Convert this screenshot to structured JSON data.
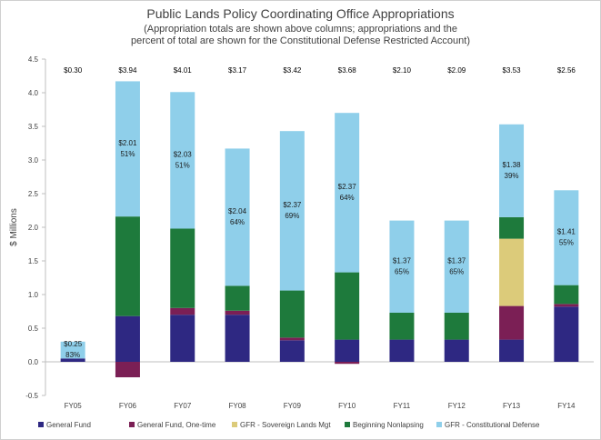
{
  "chart_data": {
    "type": "bar",
    "stacked": true,
    "title": "Public Lands Policy Coordinating Office Appropriations",
    "subtitle": [
      "(Appropriation totals are shown above columns; appropriations and the",
      "percent of total are shown for the Constitutional Defense Restricted Account)"
    ],
    "ylabel": "$ Millions",
    "xlabel": "",
    "ylim": [
      -0.5,
      4.5
    ],
    "yticks": [
      "4.5",
      "4.0",
      "3.5",
      "3.0",
      "2.5",
      "2.0",
      "1.5",
      "1.0",
      "0.5",
      "0.0",
      "-0.5"
    ],
    "ytick_values": [
      4.5,
      4.0,
      3.5,
      3.0,
      2.5,
      2.0,
      1.5,
      1.0,
      0.5,
      0.0,
      -0.5
    ],
    "grid": false,
    "legend_position": "bottom",
    "categories": [
      "FY05",
      "FY06",
      "FY07",
      "FY08",
      "FY09",
      "FY10",
      "FY11",
      "FY12",
      "FY13",
      "FY14"
    ],
    "totals": [
      "$0.30",
      "$3.94",
      "$4.01",
      "$3.17",
      "$3.42",
      "$3.68",
      "$2.10",
      "$2.09",
      "$3.53",
      "$2.56"
    ],
    "series": [
      {
        "name": "General Fund",
        "color": "#2e2882",
        "values": [
          0.05,
          0.68,
          0.7,
          0.7,
          0.32,
          0.33,
          0.33,
          0.33,
          0.33,
          0.82
        ]
      },
      {
        "name": "General Fund, One-time",
        "color": "#7b1f55",
        "values": [
          0.0,
          -0.23,
          0.1,
          0.06,
          0.04,
          -0.03,
          0.0,
          0.0,
          0.5,
          0.04
        ]
      },
      {
        "name": "GFR - Sovereign Lands Mgt",
        "color": "#dccb7a",
        "values": [
          0.0,
          0.0,
          0.0,
          0.0,
          0.0,
          0.0,
          0.0,
          0.0,
          1.0,
          0.0
        ]
      },
      {
        "name": "Beginning Nonlapsing",
        "color": "#1e7a3c",
        "values": [
          0.0,
          1.48,
          1.18,
          0.37,
          0.7,
          1.0,
          0.4,
          0.4,
          0.32,
          0.28
        ]
      },
      {
        "name": "GFR - Constitutional Defense",
        "color": "#8fcfea",
        "values": [
          0.25,
          2.01,
          2.03,
          2.04,
          2.37,
          2.37,
          1.37,
          1.37,
          1.38,
          1.41
        ]
      }
    ],
    "constitutional_defense_labels": [
      {
        "amount": "$0.25",
        "percent": "83%"
      },
      {
        "amount": "$2.01",
        "percent": "51%"
      },
      {
        "amount": "$2.03",
        "percent": "51%"
      },
      {
        "amount": "$2.04",
        "percent": "64%"
      },
      {
        "amount": "$2.37",
        "percent": "69%"
      },
      {
        "amount": "$2.37",
        "percent": "64%"
      },
      {
        "amount": "$1.37",
        "percent": "65%"
      },
      {
        "amount": "$1.37",
        "percent": "65%"
      },
      {
        "amount": "$1.38",
        "percent": "39%"
      },
      {
        "amount": "$1.41",
        "percent": "55%"
      }
    ]
  }
}
